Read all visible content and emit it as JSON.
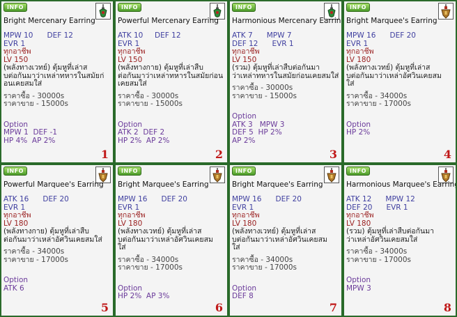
{
  "badge": "INFO",
  "cards": [
    {
      "title": "Bright Mercenary Earring",
      "icon": "green-earring-icon",
      "stats": [
        "MPW 10      DEF 12",
        "EVR 1"
      ],
      "class": "ทุกอาชีพ",
      "level": "LV 150",
      "desc": [
        "(พลังทางเวทย์) ตุ้มหูที่เล่าส",
        "บต่อกันมาว่าเหล่าทหารในสมัยก่",
        "อนเคยสมใส่"
      ],
      "buy": "ราคาซื้อ - 30000s",
      "sell": "ราคาขาย - 15000s",
      "option_label": "Option",
      "options": [
        "MPW 1  DEF -1",
        "HP 4%  AP 2%"
      ],
      "number": "1"
    },
    {
      "title": "Powerful Mercenary Earring",
      "icon": "green-earring-icon",
      "stats": [
        "ATK 10     DEF 12",
        "EVR 1"
      ],
      "class": "ทุกอาชีพ",
      "level": "LV 150",
      "desc": [
        "(พลังทางกาย) ตุ้มหูที่เล่าสืบ",
        "ต่อกันมาว่าเหล่าทหารในสมัยก่อน",
        "เคยสมใส่"
      ],
      "buy": "ราคาซื้อ - 30000s",
      "sell": "ราคาขาย - 15000s",
      "option_label": "Option",
      "options": [
        "ATK 2  DEF 2",
        "HP 2%  AP 2%"
      ],
      "number": "2"
    },
    {
      "title": "Harmonious Mercenary Earring",
      "icon": "green-earring-icon",
      "stats": [
        "ATK 7      MPW 7",
        "DEF 12      EVR 1"
      ],
      "class": "ทุกอาชีพ",
      "level": "LV 150",
      "desc": [
        "(รวม) ตุ้มหูที่เล่าสืบต่อกันมา",
        "ว่าเหล่าทหารในสมัยก่อนเคยสมใส่"
      ],
      "buy": "ราคาซื้อ - 30000s",
      "sell": "ราคาขาย - 15000s",
      "option_label": "Option",
      "options": [
        "ATK 3   MPW 3",
        "DEF 5  HP 2%",
        "AP 2%"
      ],
      "number": "3"
    },
    {
      "title": "Bright Marquee's Earring",
      "icon": "gold-earring-icon",
      "stats": [
        "MPW 16      DEF 20",
        "EVR 1"
      ],
      "class": "ทุกอาชีพ",
      "level": "LV 180",
      "desc": [
        "(พลังทางเวทย์) ตุ้มหูที่เล่าส",
        "บต่อกันมาว่าเหล่าอัศวินเคยสม",
        "ใส่"
      ],
      "buy": "ราคาซื้อ - 34000s",
      "sell": "ราคาขาย - 17000s",
      "option_label": "Option",
      "options": [
        "HP 2%"
      ],
      "number": "4"
    },
    {
      "title": "Powerful Marquee's Earring",
      "icon": "gold-earring-icon",
      "stats": [
        "ATK 16      DEF 20",
        "EVR 1"
      ],
      "class": "ทุกอาชีพ",
      "level": "LV 180",
      "desc": [
        "(พลังทางกาย) ตุ้มหูที่เล่าสืบ",
        "ต่อกันมาว่าเหล่าอัศวินเคยสมใส่"
      ],
      "buy": "ราคาซื้อ - 34000s",
      "sell": "ราคาขาย - 17000s",
      "option_label": "Option",
      "options": [
        "ATK 6"
      ],
      "number": "5"
    },
    {
      "title": "Bright Marquee's Earring",
      "icon": "gold-earring-icon",
      "stats": [
        "MPW 16      DEF 20",
        "EVR 1"
      ],
      "class": "ทุกอาชีพ",
      "level": "LV 180",
      "desc": [
        "(พลังทางเวทย์) ตุ้มหูที่เล่าส",
        "บต่อกันมาว่าเหล่าอัศวินเคยสม",
        "ใส่"
      ],
      "buy": "ราคาซื้อ - 34000s",
      "sell": "ราคาขาย - 17000s",
      "option_label": "Option",
      "options": [
        "HP 2%  AP 3%"
      ],
      "number": "6"
    },
    {
      "title": "Bright Marquee's Earring",
      "icon": "gold-earring-icon",
      "stats": [
        "MPW 16      DEF 20",
        "EVR 1"
      ],
      "class": "ทุกอาชีพ",
      "level": "LV 180",
      "desc": [
        "(พลังทางเวทย์) ตุ้มหูที่เล่าส",
        "บต่อกันมาว่าเหล่าอัศวินเคยสม",
        "ใส่"
      ],
      "buy": "ราคาซื้อ - 34000s",
      "sell": "ราคาขาย - 17000s",
      "option_label": "Option",
      "options": [
        "DEF 8"
      ],
      "number": "7"
    },
    {
      "title": "Harmonious Marquee's Earring",
      "icon": "gold-earring-icon",
      "stats": [
        "ATK 12      MPW 12",
        "DEF 20      EVR 1"
      ],
      "class": "ทุกอาชีพ",
      "level": "LV 180",
      "desc": [
        "(รวม) ตุ้มหูที่เล่าสืบต่อกันมา",
        "ว่าเหล่าอัศวินเคยสมใส่"
      ],
      "buy": "ราคาซื้อ - 34000s",
      "sell": "ราคาขาย - 17000s",
      "option_label": "Option",
      "options": [
        "MPW 3"
      ],
      "number": "8"
    }
  ]
}
